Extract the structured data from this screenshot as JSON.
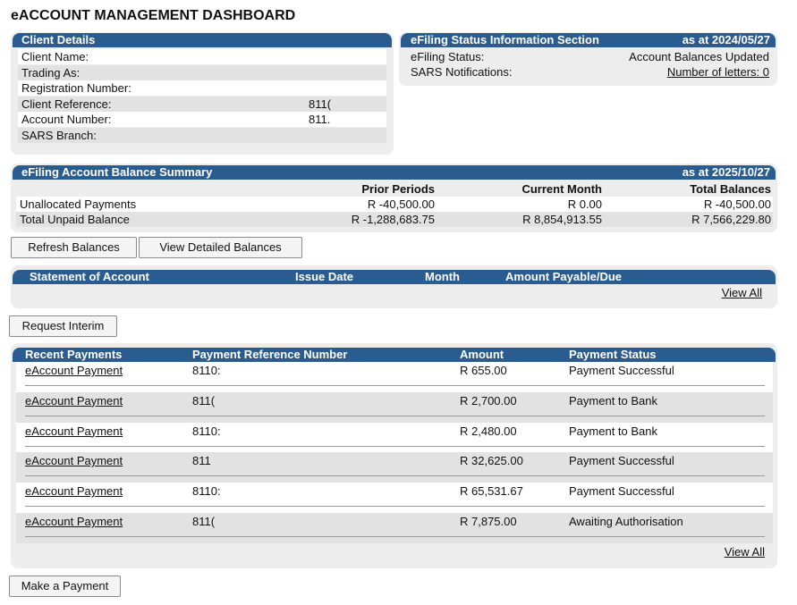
{
  "title": "eACCOUNT MANAGEMENT DASHBOARD",
  "client_details": {
    "title": "Client Details",
    "rows": [
      {
        "label": "Client Name:"
      },
      {
        "label": "Trading As:"
      },
      {
        "label": "Registration Number:"
      },
      {
        "label": "Client Reference:",
        "value": "811("
      },
      {
        "label": "Account Number:",
        "value": "811."
      },
      {
        "label": "SARS Branch:"
      }
    ]
  },
  "efiling_status": {
    "title": "eFiling Status Information Section",
    "as_at": "as at 2024/05/27",
    "rows": [
      {
        "label": "eFiling Status:",
        "value": "Account Balances Updated"
      },
      {
        "label": "SARS Notifications:",
        "value": "Number of letters: 0"
      }
    ]
  },
  "balance_summary": {
    "title": "eFiling Account Balance Summary",
    "as_at": "as at 2025/10/27",
    "columns": [
      "Prior Periods",
      "Current Month",
      "Total Balances"
    ],
    "rows": [
      {
        "label": "Unallocated Payments",
        "values": [
          "R -40,500.00",
          "R 0.00",
          "R -40,500.00"
        ]
      },
      {
        "label": "Total Unpaid Balance",
        "values": [
          "R -1,288,683.75",
          "R 8,854,913.55",
          "R 7,566,229.80"
        ]
      }
    ]
  },
  "balance_buttons": [
    "Refresh Balances",
    "View Detailed Balances"
  ],
  "statement": {
    "columns": [
      "Statement of Account",
      "Issue Date",
      "Month",
      "Amount Payable/Due"
    ],
    "link": "View All"
  },
  "request_button": "Request Interim",
  "payments": {
    "columns": [
      "Recent Payments",
      "Payment Reference Number",
      "Amount",
      "Payment Status"
    ],
    "rows": [
      [
        "eAccount Payment",
        "8110:",
        "R 655.00",
        "Payment Successful"
      ],
      [
        "eAccount Payment",
        "811(",
        "R 2,700.00",
        "Payment to Bank"
      ],
      [
        "eAccount Payment",
        "8110:",
        "R 2,480.00",
        "Payment to Bank"
      ],
      [
        "eAccount Payment",
        "811",
        "R 32,625.00",
        "Payment Successful"
      ],
      [
        "eAccount Payment",
        "8110:",
        "R 65,531.67",
        "Payment Successful"
      ],
      [
        "eAccount Payment",
        "811(",
        "R 7,875.00",
        "Awaiting Authorisation"
      ]
    ],
    "link": "View All"
  },
  "payment_button": "Make a Payment"
}
